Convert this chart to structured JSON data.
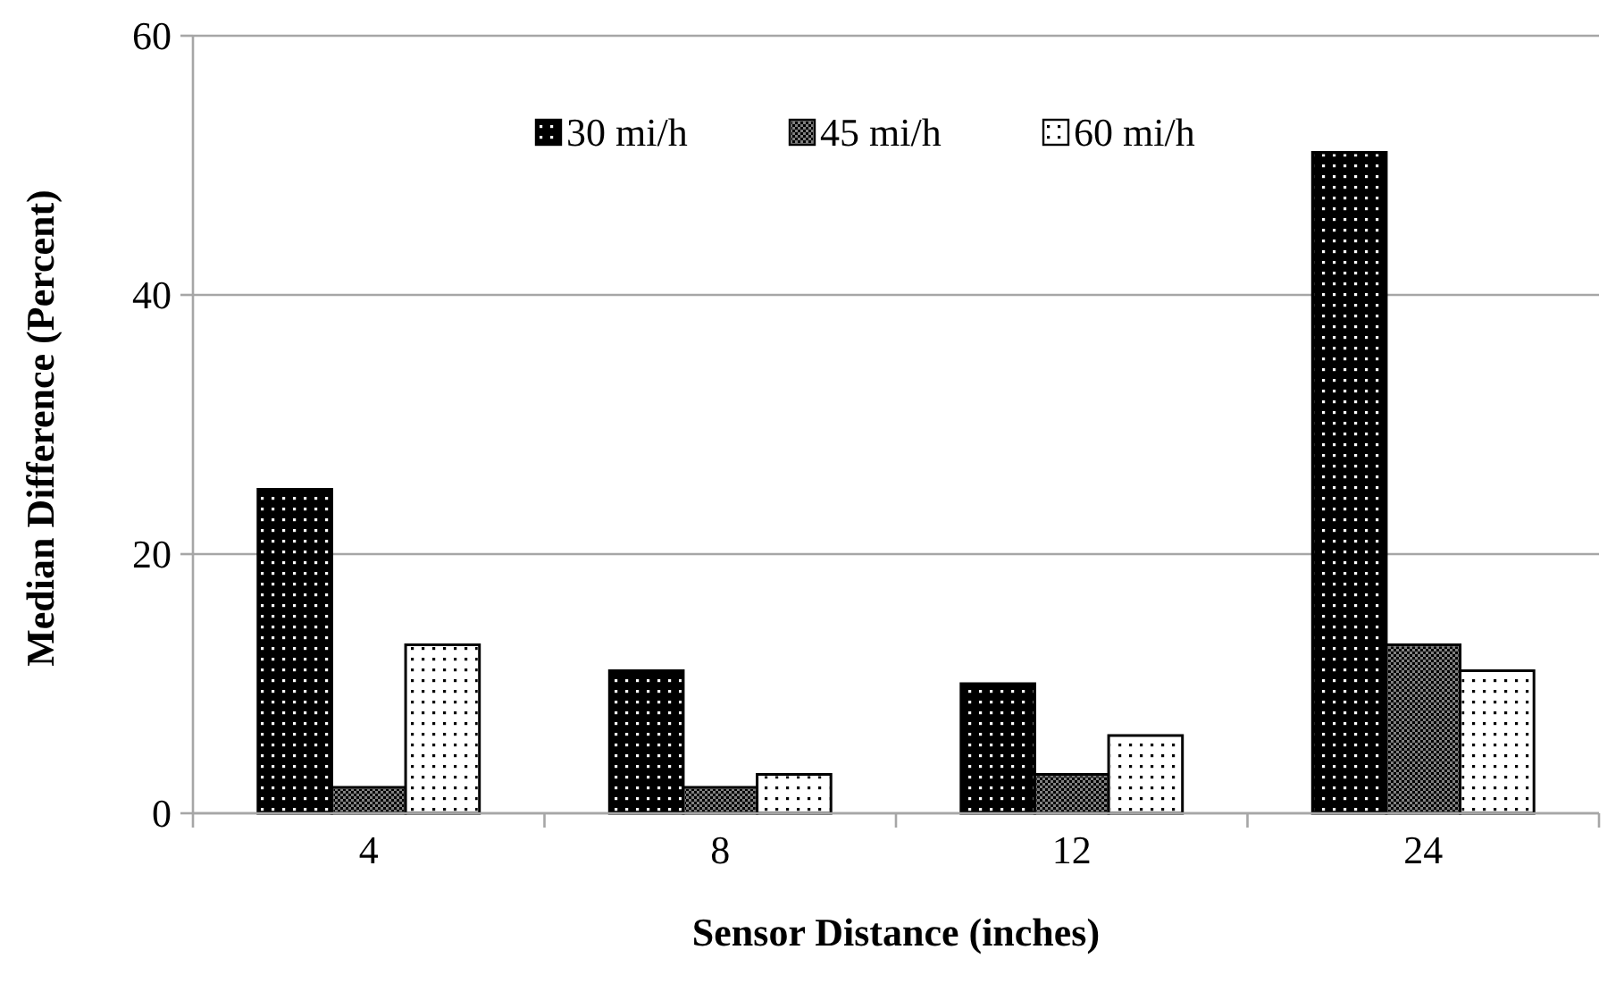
{
  "chart_data": {
    "type": "bar",
    "xlabel": "Sensor Distance (inches)",
    "ylabel": "Median Difference (Percent)",
    "categories": [
      "4",
      "8",
      "12",
      "24"
    ],
    "series": [
      {
        "name": "30 mi/h",
        "color": "#000000",
        "values": [
          25,
          11,
          10,
          51
        ]
      },
      {
        "name": "45 mi/h",
        "color": "#808080",
        "values": [
          2,
          2,
          3,
          13
        ]
      },
      {
        "name": "60 mi/h",
        "color": "#ffffff",
        "values": [
          13,
          3,
          6,
          11
        ]
      }
    ],
    "ylim": [
      0,
      60
    ],
    "yticks": [
      0,
      20,
      40,
      60
    ],
    "grid": "y",
    "legend": "top"
  }
}
